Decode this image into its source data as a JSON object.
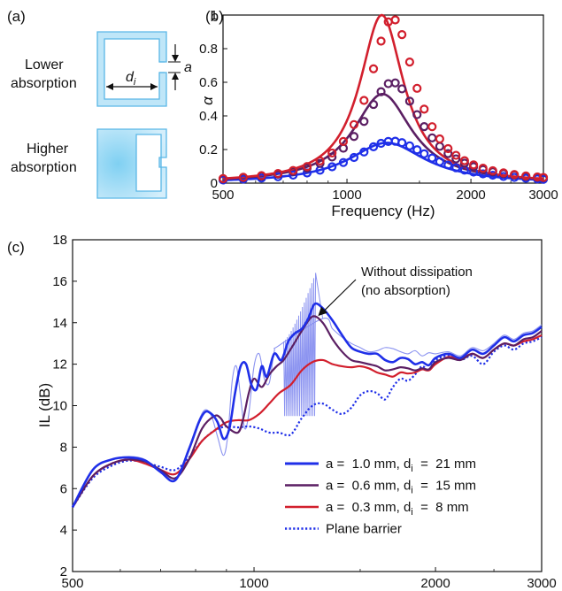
{
  "panel_labels": {
    "a": "(a)",
    "b": "(b)",
    "c": "(c)"
  },
  "schematic": {
    "lower_label_line1": "Lower",
    "lower_label_line2": "absorption",
    "higher_label_line1": "Higher",
    "higher_label_line2": "absorption",
    "width_symbol": "d",
    "width_subscript": "i",
    "gap_symbol": "a"
  },
  "colors": {
    "blue": "#1f2fe8",
    "purple": "#5b1f63",
    "red": "#d21f2d",
    "light_blue": "#8a92f0",
    "schematic_stroke": "#5ab7e6",
    "schematic_fill": "#bfe6f8"
  },
  "chart_data": [
    {
      "id": "b",
      "type": "line",
      "xlabel": "Frequency (Hz)",
      "ylabel": "α",
      "xscale": "log",
      "xlim": [
        500,
        3000
      ],
      "ylim": [
        0,
        1
      ],
      "xticks": [
        500,
        1000,
        2000,
        3000
      ],
      "xtick_labels": [
        "500",
        "1000",
        "2000",
        "3000"
      ],
      "yticks": [
        0,
        0.2,
        0.4,
        0.6,
        0.8,
        1
      ],
      "ytick_labels": [
        "0",
        "0.2",
        "0.4",
        "0.6",
        "0.8",
        "1"
      ],
      "series": [
        {
          "color_key": "blue",
          "style": "solid",
          "peak_frequency": 1250,
          "peak": 0.24,
          "width": 0.52
        },
        {
          "color_key": "purple",
          "style": "solid",
          "peak_frequency": 1220,
          "peak": 0.53,
          "width": 0.4
        },
        {
          "color_key": "red",
          "style": "solid",
          "peak_frequency": 1215,
          "peak": 1.0,
          "width": 0.3
        },
        {
          "color_key": "blue",
          "style": "markers",
          "peak_frequency": 1290,
          "peak": 0.25,
          "width": 0.54
        },
        {
          "color_key": "purple",
          "style": "markers",
          "peak_frequency": 1290,
          "peak": 0.6,
          "width": 0.4
        },
        {
          "color_key": "red",
          "style": "markers",
          "peak_frequency": 1290,
          "peak": 0.98,
          "width": 0.32
        }
      ],
      "marker_frequencies": [
        500,
        560,
        620,
        680,
        740,
        800,
        860,
        920,
        980,
        1040,
        1100,
        1160,
        1210,
        1260,
        1310,
        1360,
        1420,
        1480,
        1540,
        1610,
        1680,
        1760,
        1840,
        1930,
        2030,
        2140,
        2260,
        2400,
        2550,
        2720,
        2900,
        3000
      ]
    },
    {
      "id": "c",
      "type": "line",
      "xlabel": "Frequency (Hz)",
      "ylabel": "IL (dB)",
      "xscale": "log",
      "xlim": [
        500,
        3000
      ],
      "ylim": [
        2,
        18
      ],
      "xticks": [
        500,
        1000,
        2000,
        3000
      ],
      "xtick_labels": [
        "500",
        "1000",
        "2000",
        "3000"
      ],
      "yticks": [
        2,
        4,
        6,
        8,
        10,
        12,
        14,
        16,
        18
      ],
      "ytick_labels": [
        "2",
        "4",
        "6",
        "8",
        "10",
        "12",
        "14",
        "16",
        "18"
      ],
      "annotation": {
        "line1": "Without dissipation",
        "line2": "(no absorption)",
        "points_to": [
          1260,
          14.2
        ]
      },
      "series": [
        {
          "name": "Plane barrier",
          "color_key": "blue",
          "style": "dotted",
          "x": [
            500,
            540,
            580,
            620,
            660,
            700,
            740,
            780,
            820,
            860,
            900,
            940,
            980,
            1020,
            1060,
            1100,
            1150,
            1200,
            1250,
            1300,
            1350,
            1400,
            1450,
            1500,
            1550,
            1600,
            1650,
            1700,
            1750,
            1800,
            1850,
            1900,
            1950,
            2000,
            2100,
            2200,
            2300,
            2400,
            2500,
            2600,
            2700,
            2800,
            2900,
            3000
          ],
          "y": [
            5.1,
            6.5,
            7.1,
            7.35,
            7.25,
            7.05,
            6.9,
            7.5,
            8.3,
            8.8,
            9.0,
            8.95,
            9.0,
            8.9,
            8.7,
            8.7,
            8.6,
            9.4,
            10.0,
            10.1,
            9.8,
            9.6,
            9.9,
            10.5,
            10.7,
            10.6,
            10.3,
            10.9,
            11.3,
            11.2,
            11.5,
            11.9,
            11.7,
            12.2,
            12.4,
            12.2,
            12.4,
            12.0,
            12.6,
            12.9,
            12.7,
            13.0,
            13.1,
            13.3
          ]
        },
        {
          "name": "a = 0.3 mm, d = 8 mm",
          "legend_a": "a = 0.3 mm, d",
          "legend_sub": "i",
          "legend_tail": " = 8 mm",
          "color_key": "red",
          "style": "solid",
          "x": [
            500,
            540,
            580,
            620,
            660,
            700,
            740,
            780,
            820,
            860,
            900,
            940,
            980,
            1020,
            1060,
            1100,
            1150,
            1200,
            1250,
            1300,
            1350,
            1400,
            1450,
            1500,
            1550,
            1600,
            1650,
            1700,
            1750,
            1800,
            1850,
            1900,
            1950,
            2000,
            2100,
            2200,
            2300,
            2400,
            2500,
            2600,
            2700,
            2800,
            2900,
            3000
          ],
          "y": [
            5.1,
            6.6,
            7.2,
            7.4,
            7.2,
            6.9,
            6.7,
            7.4,
            8.3,
            8.8,
            9.2,
            9.3,
            9.3,
            9.6,
            10.1,
            10.6,
            11.0,
            11.7,
            12.1,
            12.2,
            12.0,
            11.9,
            11.85,
            11.9,
            11.8,
            11.6,
            11.5,
            11.4,
            11.6,
            11.55,
            11.6,
            11.75,
            11.7,
            12.0,
            12.35,
            12.25,
            12.5,
            12.3,
            12.7,
            13.0,
            12.9,
            13.1,
            13.2,
            13.4
          ]
        },
        {
          "name": "a = 0.6 mm, d = 15 mm",
          "legend_a": "a = 0.6 mm, d",
          "legend_sub": "i",
          "legend_tail": " = 15 mm",
          "color_key": "purple",
          "style": "solid",
          "x": [
            500,
            540,
            580,
            620,
            660,
            700,
            740,
            780,
            820,
            860,
            880,
            900,
            940,
            960,
            980,
            1000,
            1030,
            1060,
            1090,
            1120,
            1160,
            1200,
            1250,
            1300,
            1350,
            1400,
            1450,
            1500,
            1550,
            1600,
            1650,
            1700,
            1750,
            1800,
            1850,
            1900,
            1950,
            2000,
            2100,
            2200,
            2300,
            2400,
            2500,
            2600,
            2700,
            2800,
            2900,
            3000
          ],
          "y": [
            5.1,
            6.6,
            7.2,
            7.4,
            7.3,
            6.9,
            6.5,
            7.4,
            8.9,
            9.5,
            9.4,
            9.0,
            8.7,
            9.4,
            10.6,
            11.3,
            10.9,
            11.5,
            11.9,
            12.2,
            12.9,
            13.6,
            14.3,
            14.0,
            13.2,
            12.6,
            12.2,
            12.1,
            12.0,
            11.9,
            11.7,
            11.75,
            11.85,
            11.8,
            11.7,
            11.8,
            11.75,
            12.1,
            12.3,
            12.2,
            12.5,
            12.3,
            12.7,
            13.0,
            12.9,
            13.2,
            13.3,
            13.6
          ]
        },
        {
          "name": "a = 1.0 mm, d = 21 mm",
          "legend_a": "a = 1.0 mm, d",
          "legend_sub": "i",
          "legend_tail": " = 21 mm",
          "color_key": "blue",
          "style": "solid",
          "width": 2.6,
          "x": [
            500,
            540,
            580,
            620,
            660,
            700,
            740,
            780,
            810,
            830,
            850,
            870,
            890,
            910,
            930,
            950,
            970,
            990,
            1010,
            1030,
            1050,
            1080,
            1110,
            1140,
            1170,
            1200,
            1230,
            1260,
            1300,
            1350,
            1400,
            1450,
            1500,
            1550,
            1600,
            1650,
            1700,
            1750,
            1800,
            1850,
            1900,
            1950,
            2000,
            2100,
            2200,
            2300,
            2400,
            2500,
            2600,
            2700,
            2800,
            2900,
            3000
          ],
          "y": [
            5.1,
            6.9,
            7.4,
            7.5,
            7.35,
            6.8,
            6.4,
            7.9,
            9.2,
            9.7,
            9.6,
            9.2,
            8.4,
            8.9,
            10.6,
            11.9,
            12.0,
            11.0,
            10.8,
            11.9,
            11.4,
            12.5,
            12.2,
            13.1,
            13.5,
            13.7,
            14.2,
            14.9,
            14.7,
            14.1,
            13.4,
            12.8,
            12.6,
            12.5,
            12.5,
            12.2,
            12.1,
            12.3,
            12.25,
            12.0,
            12.1,
            11.95,
            12.3,
            12.5,
            12.3,
            12.7,
            12.5,
            12.9,
            13.3,
            13.1,
            13.4,
            13.5,
            13.8
          ]
        },
        {
          "name": "Without dissipation",
          "color_key": "light_blue",
          "style": "solid",
          "width": 1.1,
          "x": [
            500,
            540,
            580,
            620,
            660,
            700,
            740,
            780,
            810,
            830,
            850,
            870,
            890,
            905,
            920,
            935,
            950,
            965,
            980,
            1000,
            1020,
            1040,
            1060,
            1080,
            1100,
            1300,
            1350,
            1400,
            1450,
            1500,
            1550,
            1600,
            1650,
            1700,
            1750,
            1800,
            1850,
            1900,
            1950,
            2000,
            2100,
            2200,
            2300,
            2400,
            2500,
            2600,
            2700,
            2800,
            2900,
            3000
          ],
          "y": [
            5.1,
            6.9,
            7.4,
            7.55,
            7.4,
            6.8,
            6.4,
            8.0,
            9.3,
            9.8,
            9.5,
            8.5,
            7.6,
            8.6,
            11.2,
            11.9,
            10.4,
            8.9,
            9.6,
            11.9,
            12.5,
            11.3,
            11.1,
            12.6,
            12.9,
            14.2,
            13.7,
            13.3,
            13.0,
            12.8,
            12.6,
            12.65,
            12.8,
            12.75,
            12.6,
            12.5,
            12.65,
            12.4,
            12.55,
            12.5,
            12.6,
            12.4,
            12.8,
            12.65,
            13.0,
            13.4,
            13.2,
            13.5,
            13.6,
            13.9
          ]
        }
      ],
      "oscillation_band": {
        "x_start": 1120,
        "x_end": 1265,
        "envelope_high_start": 13.1,
        "envelope_high_end": 16.4,
        "envelope_low_start": 9.5,
        "envelope_low_end": 9.5,
        "cycles": 17
      }
    }
  ]
}
